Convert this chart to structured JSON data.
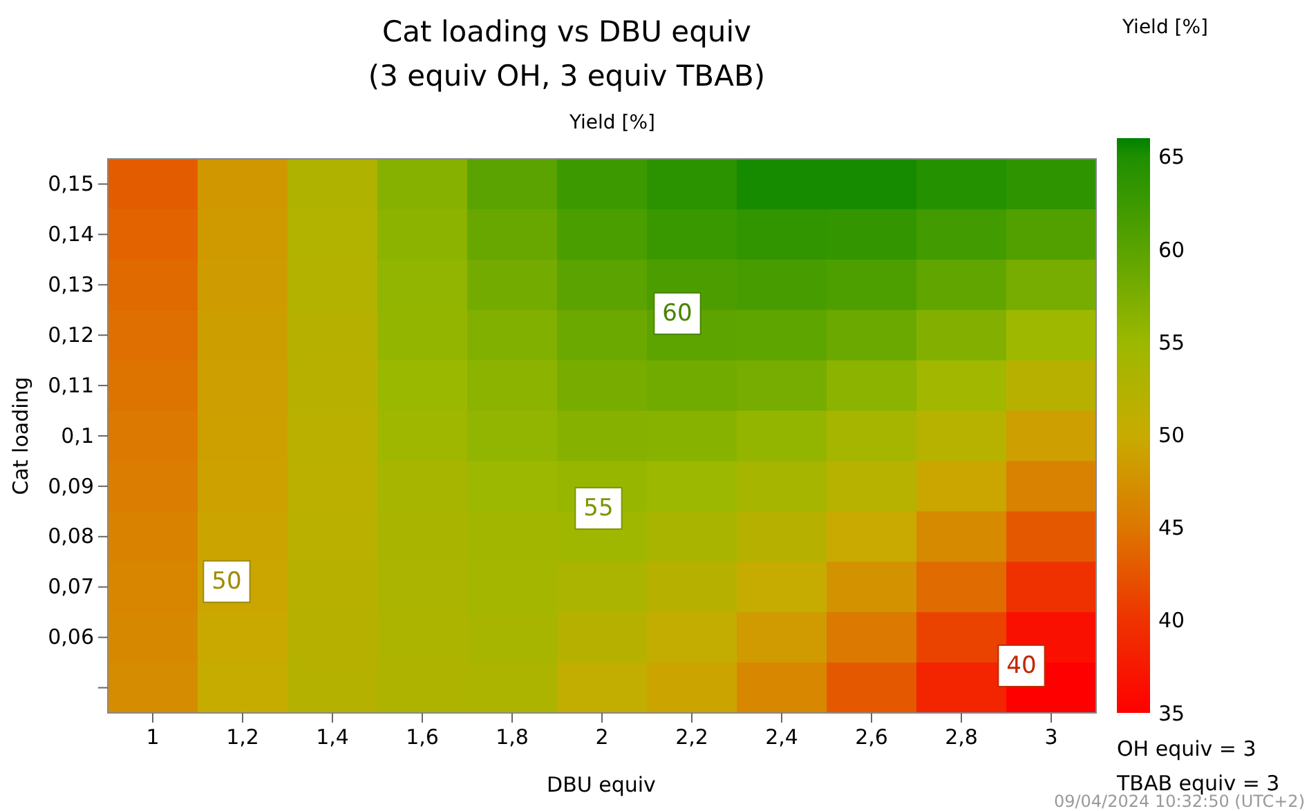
{
  "chart_data": {
    "type": "heatmap",
    "title": "Cat loading vs DBU equiv",
    "subtitle": "(3 equiv OH, 3 equiv TBAB)",
    "xlabel": "DBU equiv",
    "ylabel": "Cat loading",
    "clabel": "Yield [%]",
    "categories": [
      "1",
      "1,2",
      "1,4",
      "1,6",
      "1,8",
      "2",
      "2,2",
      "2,4",
      "2,6",
      "2,8",
      "3"
    ],
    "y_categories": [
      "0,15",
      "0,14",
      "0,13",
      "0,12",
      "0,11",
      "0,1",
      "0,09",
      "0,08",
      "0,07",
      "0,06",
      null
    ],
    "cells": [
      [
        43,
        48,
        52.7,
        56.6,
        60,
        62.5,
        64,
        65.3,
        65.3,
        64.6,
        63.7
      ],
      [
        43.5,
        48.3,
        52.5,
        56.3,
        59,
        61.3,
        62.8,
        63.5,
        63.3,
        62,
        60.7
      ],
      [
        44,
        48.5,
        52.3,
        55.8,
        58,
        60,
        61.2,
        61.6,
        61.1,
        59.5,
        57.8
      ],
      [
        44.4,
        48.7,
        52,
        55.6,
        57,
        58.7,
        59.7,
        59.6,
        58.7,
        56.9,
        54.8
      ],
      [
        44.8,
        48.8,
        51.8,
        55.1,
        56.2,
        57.7,
        58.2,
        57.8,
        56.3,
        54.4,
        51.8
      ],
      [
        45.2,
        48.9,
        51.6,
        54.5,
        55.8,
        56.6,
        56.5,
        55.7,
        53.9,
        51.9,
        48.8
      ],
      [
        45.6,
        49,
        51.5,
        53.8,
        55,
        55.4,
        54.9,
        53.9,
        51.9,
        49.4,
        45.9
      ],
      [
        46,
        49.2,
        51.6,
        53.5,
        54.3,
        54.5,
        53.5,
        52.1,
        49.8,
        46.8,
        42.8
      ],
      [
        46.3,
        49.4,
        51.8,
        53.3,
        54,
        53.3,
        52,
        50.2,
        47.5,
        44.1,
        39.8
      ],
      [
        46.6,
        49.7,
        52,
        53.2,
        53.6,
        52,
        50.6,
        48.4,
        45.2,
        41.2,
        36.6
      ],
      [
        47,
        50.1,
        52.2,
        53,
        53.2,
        50.8,
        49.2,
        46.5,
        42.8,
        38.5,
        35
      ]
    ],
    "clim": [
      35,
      66
    ],
    "cticks": [
      35,
      40,
      45,
      50,
      55,
      60,
      65
    ],
    "annotations": [
      "60",
      "55",
      "50",
      "40",
      "Yield [%]",
      "OH equiv = 3",
      "TBAB equiv = 3",
      "09/04/2024 10:32:50 (UTC+2)"
    ]
  }
}
